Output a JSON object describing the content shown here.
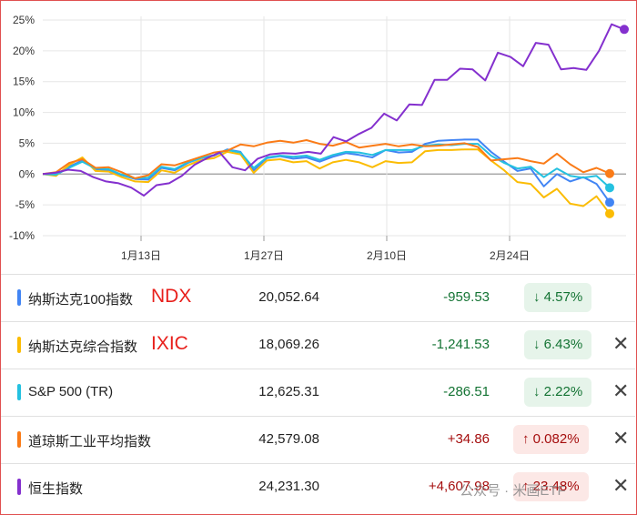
{
  "chart_data": {
    "type": "line",
    "ylim": [
      -10,
      25
    ],
    "y_ticks": [
      "25%",
      "20%",
      "15%",
      "10%",
      "5%",
      "0%",
      "-5%",
      "-10%"
    ],
    "x_ticks": [
      "1月13日",
      "1月27日",
      "2月10日",
      "2月24日"
    ],
    "grid": true,
    "series": [
      {
        "name": "纳斯达克100指数",
        "color": "#4285f4",
        "values": [
          0,
          -0.2,
          1.2,
          2.2,
          0.8,
          0.6,
          -0.2,
          -0.8,
          -0.9,
          1,
          0.6,
          1.8,
          2.6,
          3,
          4,
          3.6,
          0.6,
          2.6,
          2.9,
          2.5,
          2.7,
          2,
          2.8,
          3.4,
          3.1,
          2.7,
          3.9,
          3.5,
          3.6,
          4.9,
          5.4,
          5.5,
          5.6,
          5.6,
          3.6,
          2,
          0.5,
          0.9,
          -2,
          0,
          -1.2,
          -0.5,
          -1.6,
          -4.6
        ]
      },
      {
        "name": "纳斯达克综合指数",
        "color": "#fbbc04",
        "values": [
          0,
          -0.3,
          1.5,
          2.7,
          0.5,
          0.4,
          -0.5,
          -1.2,
          -1.3,
          0.6,
          0.2,
          1.4,
          2.3,
          2.6,
          3.6,
          3.2,
          0.2,
          2.2,
          2.4,
          1.9,
          2.1,
          0.9,
          1.9,
          2.3,
          1.9,
          1.1,
          2.1,
          1.8,
          1.9,
          3.7,
          3.9,
          3.9,
          4,
          4,
          2.2,
          0.6,
          -1.3,
          -1.6,
          -3.8,
          -2.4,
          -4.8,
          -5.2,
          -3.6,
          -6.43
        ]
      },
      {
        "name": "S&P 500 (TR)",
        "color": "#24c1e0",
        "values": [
          0,
          -0.1,
          1,
          2,
          0.9,
          0.8,
          -0.1,
          -0.7,
          -0.6,
          1.2,
          0.8,
          1.9,
          2.6,
          3.1,
          3.9,
          3.5,
          1,
          2.7,
          3,
          2.8,
          3,
          2.3,
          3.1,
          3.6,
          3.5,
          3.1,
          3.9,
          3.9,
          3.9,
          4.6,
          4.8,
          4.7,
          4.9,
          4.9,
          3,
          1.8,
          0.9,
          1.2,
          -0.5,
          0.9,
          -0.3,
          -0.6,
          -0.3,
          -2.22
        ]
      },
      {
        "name": "道琼斯工业平均指数",
        "color": "#fa7b17",
        "values": [
          0,
          0.3,
          1.8,
          2.4,
          1,
          1.1,
          0.3,
          -0.7,
          -0.2,
          1.6,
          1.4,
          2.1,
          2.8,
          3.5,
          3.8,
          4.8,
          4.5,
          5.1,
          5.4,
          5.1,
          5.5,
          4.9,
          4.6,
          5.2,
          4.3,
          4.6,
          4.9,
          4.5,
          4.8,
          4.5,
          4.6,
          4.8,
          5,
          4.4,
          2.2,
          2.4,
          2.6,
          2.1,
          1.7,
          3.3,
          1.6,
          0.3,
          1,
          0.08
        ]
      },
      {
        "name": "恒生指数",
        "color": "#8430ce",
        "values": [
          0,
          0.2,
          0.7,
          0.5,
          -0.5,
          -1.2,
          -1.5,
          -2.2,
          -3.5,
          -1.8,
          -1.5,
          -0.3,
          1.5,
          2.6,
          3.5,
          1.1,
          0.6,
          2.5,
          3.2,
          3.4,
          3.3,
          3.6,
          3.3,
          6,
          5.3,
          6.5,
          7.5,
          9.8,
          8.7,
          11.3,
          11.2,
          15.3,
          15.3,
          17.1,
          17,
          15.2,
          19.7,
          19,
          17.5,
          21.3,
          21,
          17,
          17.2,
          16.9,
          20,
          24.3,
          23.48
        ]
      }
    ]
  },
  "indices": [
    {
      "name": "纳斯达克100指数",
      "abbr": "NDX",
      "value": "20,052.64",
      "change": "-959.53",
      "pct": "4.57%",
      "arrow": "↓",
      "dir": "neg",
      "color": "#4285f4",
      "close": ""
    },
    {
      "name": "纳斯达克综合指数",
      "abbr": "IXIC",
      "value": "18,069.26",
      "change": "-1,241.53",
      "pct": "6.43%",
      "arrow": "↓",
      "dir": "neg",
      "color": "#fbbc04",
      "close": "✕"
    },
    {
      "name": "S&P 500 (TR)",
      "abbr": "",
      "value": "12,625.31",
      "change": "-286.51",
      "pct": "2.22%",
      "arrow": "↓",
      "dir": "neg",
      "color": "#24c1e0",
      "close": "✕"
    },
    {
      "name": "道琼斯工业平均指数",
      "abbr": "",
      "value": "42,579.08",
      "change": "+34.86",
      "pct": "0.082%",
      "arrow": "↑",
      "dir": "pos",
      "color": "#fa7b17",
      "close": "✕"
    },
    {
      "name": "恒生指数",
      "abbr": "",
      "value": "24,231.30",
      "change": "+4,607.98",
      "pct": "23.48%",
      "arrow": "↑",
      "dir": "pos",
      "color": "#8430ce",
      "close": "✕"
    }
  ],
  "watermark": "公众号 · 米画ETF"
}
